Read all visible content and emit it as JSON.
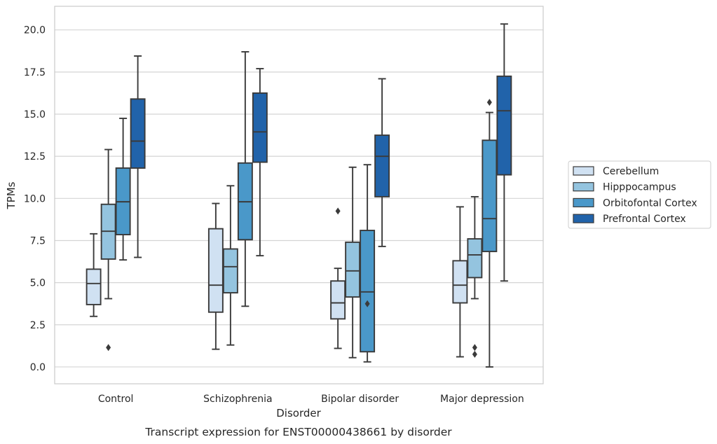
{
  "chart_data": {
    "type": "box",
    "caption": "Transcript expression for ENST00000438661 by disorder",
    "xlabel": "Disorder",
    "ylabel": "TPMs",
    "ylim": [
      -1.0,
      21.4
    ],
    "yticks": [
      0.0,
      2.5,
      5.0,
      7.5,
      10.0,
      12.5,
      15.0,
      17.5,
      20.0
    ],
    "ytick_labels": [
      "0.0",
      "2.5",
      "5.0",
      "7.5",
      "10.0",
      "12.5",
      "15.0",
      "17.5",
      "20.0"
    ],
    "grid": true,
    "legend_position": "right, outside plot area",
    "categories": [
      "Control",
      "Schizophrenia",
      "Bipolar disorder",
      "Major depression"
    ],
    "series": [
      {
        "name": "Cerebellum",
        "color": "#d0e1f2",
        "boxes": [
          {
            "whisker_low": 3.0,
            "q1": 3.7,
            "median": 4.95,
            "q3": 5.8,
            "whisker_high": 7.9,
            "outliers": []
          },
          {
            "whisker_low": 1.05,
            "q1": 3.25,
            "median": 4.85,
            "q3": 8.2,
            "whisker_high": 9.7,
            "outliers": []
          },
          {
            "whisker_low": 1.1,
            "q1": 2.85,
            "median": 3.8,
            "q3": 5.1,
            "whisker_high": 5.85,
            "outliers": [
              9.25
            ]
          },
          {
            "whisker_low": 0.6,
            "q1": 3.8,
            "median": 4.85,
            "q3": 6.3,
            "whisker_high": 9.5,
            "outliers": []
          }
        ]
      },
      {
        "name": "Hipppocampus",
        "color": "#94c4df",
        "boxes": [
          {
            "whisker_low": 4.05,
            "q1": 6.4,
            "median": 8.05,
            "q3": 9.65,
            "whisker_high": 12.9,
            "outliers": [
              1.15
            ]
          },
          {
            "whisker_low": 1.3,
            "q1": 4.4,
            "median": 5.95,
            "q3": 7.0,
            "whisker_high": 10.75,
            "outliers": []
          },
          {
            "whisker_low": 0.55,
            "q1": 4.15,
            "median": 5.7,
            "q3": 7.4,
            "whisker_high": 11.85,
            "outliers": []
          },
          {
            "whisker_low": 4.05,
            "q1": 5.3,
            "median": 6.65,
            "q3": 7.6,
            "whisker_high": 10.1,
            "outliers": [
              1.15,
              0.75
            ]
          }
        ]
      },
      {
        "name": "Orbitofontal Cortex",
        "color": "#4a98c9",
        "boxes": [
          {
            "whisker_low": 6.35,
            "q1": 7.85,
            "median": 9.8,
            "q3": 11.8,
            "whisker_high": 14.75,
            "outliers": []
          },
          {
            "whisker_low": 3.6,
            "q1": 7.55,
            "median": 9.8,
            "q3": 12.1,
            "whisker_high": 18.7,
            "outliers": []
          },
          {
            "whisker_low": 0.3,
            "q1": 0.9,
            "median": 4.45,
            "q3": 8.1,
            "whisker_high": 12.0,
            "outliers": [
              3.75
            ]
          },
          {
            "whisker_low": 0.0,
            "q1": 6.85,
            "median": 8.8,
            "q3": 13.45,
            "whisker_high": 15.1,
            "outliers": [
              15.7
            ]
          }
        ]
      },
      {
        "name": "Prefrontal Cortex",
        "color": "#2163aa",
        "boxes": [
          {
            "whisker_low": 6.5,
            "q1": 11.8,
            "median": 13.4,
            "q3": 15.9,
            "whisker_high": 18.45,
            "outliers": []
          },
          {
            "whisker_low": 6.6,
            "q1": 12.15,
            "median": 13.95,
            "q3": 16.25,
            "whisker_high": 17.7,
            "outliers": []
          },
          {
            "whisker_low": 7.15,
            "q1": 10.1,
            "median": 12.5,
            "q3": 13.75,
            "whisker_high": 17.1,
            "outliers": []
          },
          {
            "whisker_low": 5.1,
            "q1": 11.4,
            "median": 15.2,
            "q3": 17.25,
            "whisker_high": 20.35,
            "outliers": []
          }
        ]
      }
    ]
  }
}
